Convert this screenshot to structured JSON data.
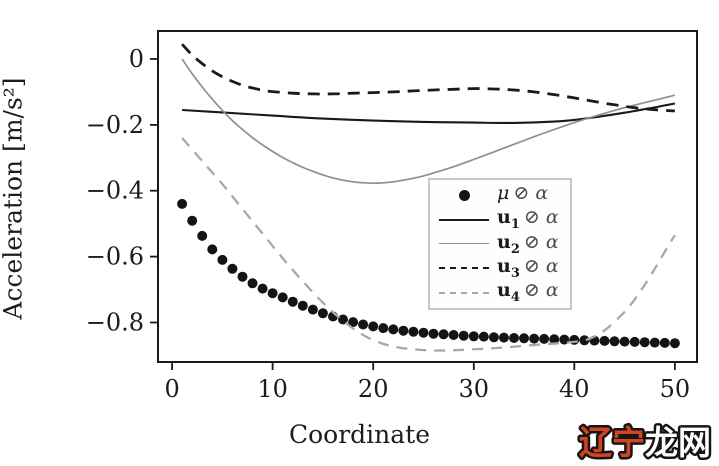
{
  "axes": {
    "x_label": "Coordinate",
    "y_label": "Acceleration [m/s²]"
  },
  "legend": {
    "entries": [
      {
        "var_base": "μ",
        "var_sub": "",
        "suffix": "⊘ α"
      },
      {
        "var_base": "u",
        "var_sub": "1",
        "suffix": "⊘ α"
      },
      {
        "var_base": "u",
        "var_sub": "2",
        "suffix": "⊘ α"
      },
      {
        "var_base": "u",
        "var_sub": "3",
        "suffix": "⊘ α"
      },
      {
        "var_base": "u",
        "var_sub": "4",
        "suffix": "⊘ α"
      }
    ]
  },
  "watermark": {
    "part1": "辽宁",
    "part2": "龙网",
    "part1_color": "#d2431f",
    "part2_color": "#ffffff",
    "outline_color": "#161616"
  },
  "chart_data": {
    "type": "line",
    "title": "",
    "xlabel": "Coordinate",
    "ylabel": "Acceleration [m/s²]",
    "xlim": [
      -1.4,
      52.2
    ],
    "ylim": [
      -0.92,
      0.085
    ],
    "grid": false,
    "legend_position": "inside lower-center-right",
    "xticks": {
      "values": [
        0,
        10,
        20,
        30,
        40,
        50
      ],
      "labels": [
        "0",
        "10",
        "20",
        "30",
        "40",
        "50"
      ]
    },
    "yticks": {
      "values": [
        0,
        -0.2,
        -0.4,
        -0.6,
        -0.8
      ],
      "labels": [
        "0",
        "−0.2",
        "−0.4",
        "−0.6",
        "−0.8"
      ]
    },
    "series": [
      {
        "name": "μ ⊘ α",
        "type": "scatter",
        "color": "#141414",
        "marker": "filled-circle",
        "marker_radius": 5,
        "x": [
          1,
          2,
          3,
          4,
          5,
          6,
          7,
          8,
          9,
          10,
          11,
          12,
          13,
          14,
          15,
          16,
          17,
          18,
          19,
          20,
          21,
          22,
          23,
          24,
          25,
          26,
          27,
          28,
          29,
          30,
          31,
          32,
          33,
          34,
          35,
          36,
          37,
          38,
          39,
          40,
          41,
          42,
          43,
          44,
          45,
          46,
          47,
          48,
          49,
          50
        ],
        "y": [
          -0.44,
          -0.491,
          -0.537,
          -0.578,
          -0.61,
          -0.637,
          -0.661,
          -0.681,
          -0.697,
          -0.711,
          -0.724,
          -0.737,
          -0.749,
          -0.761,
          -0.772,
          -0.782,
          -0.791,
          -0.799,
          -0.806,
          -0.812,
          -0.817,
          -0.821,
          -0.825,
          -0.828,
          -0.831,
          -0.834,
          -0.836,
          -0.838,
          -0.84,
          -0.842,
          -0.843,
          -0.845,
          -0.846,
          -0.847,
          -0.848,
          -0.849,
          -0.85,
          -0.851,
          -0.852,
          -0.853,
          -0.854,
          -0.855,
          -0.856,
          -0.857,
          -0.858,
          -0.859,
          -0.86,
          -0.861,
          -0.862,
          -0.863
        ]
      },
      {
        "name": "u₁ ⊘ α",
        "type": "line",
        "style": "solid",
        "color": "#1a1a1a",
        "width": 2.1,
        "dash": "",
        "x": [
          1,
          5,
          10,
          15,
          20,
          25,
          30,
          34,
          38,
          40,
          42,
          44,
          45,
          46,
          47,
          48,
          49,
          50
        ],
        "y": [
          -0.155,
          -0.162,
          -0.172,
          -0.181,
          -0.187,
          -0.191,
          -0.193,
          -0.194,
          -0.19,
          -0.185,
          -0.177,
          -0.168,
          -0.163,
          -0.158,
          -0.152,
          -0.147,
          -0.141,
          -0.135
        ]
      },
      {
        "name": "u₂ ⊘ α",
        "type": "line",
        "style": "solid",
        "color": "#8f8f8f",
        "width": 1.7,
        "dash": "",
        "x": [
          1,
          2,
          3,
          4,
          5,
          6,
          7,
          8,
          9,
          10,
          11,
          12,
          13,
          14,
          15,
          16,
          17,
          18,
          19,
          20,
          21,
          22,
          23,
          24,
          25,
          26,
          28,
          30,
          32,
          34,
          36,
          38,
          40,
          42,
          44,
          46,
          48,
          50
        ],
        "y": [
          0.0,
          -0.045,
          -0.085,
          -0.122,
          -0.156,
          -0.187,
          -0.214,
          -0.239,
          -0.261,
          -0.281,
          -0.299,
          -0.315,
          -0.329,
          -0.341,
          -0.352,
          -0.361,
          -0.368,
          -0.373,
          -0.376,
          -0.377,
          -0.376,
          -0.373,
          -0.368,
          -0.362,
          -0.355,
          -0.346,
          -0.327,
          -0.305,
          -0.282,
          -0.259,
          -0.236,
          -0.214,
          -0.193,
          -0.174,
          -0.156,
          -0.14,
          -0.125,
          -0.11
        ]
      },
      {
        "name": "u₃ ⊘ α",
        "type": "line",
        "style": "dashed",
        "color": "#1a1a1a",
        "width": 2.8,
        "dash": "12,8",
        "x": [
          1,
          2,
          3,
          4,
          5,
          6,
          7,
          8,
          9,
          10,
          12,
          14,
          16,
          18,
          20,
          22,
          24,
          26,
          28,
          30,
          32,
          34,
          36,
          38,
          40,
          42,
          44,
          46,
          48,
          50
        ],
        "y": [
          0.045,
          0.012,
          -0.014,
          -0.036,
          -0.054,
          -0.068,
          -0.08,
          -0.088,
          -0.095,
          -0.099,
          -0.104,
          -0.106,
          -0.106,
          -0.104,
          -0.102,
          -0.1,
          -0.097,
          -0.094,
          -0.092,
          -0.09,
          -0.091,
          -0.094,
          -0.1,
          -0.108,
          -0.118,
          -0.129,
          -0.139,
          -0.148,
          -0.154,
          -0.158
        ]
      },
      {
        "name": "u₄ ⊘ α",
        "type": "line",
        "style": "dashed",
        "color": "#a8a8a8",
        "width": 2.3,
        "dash": "11,8",
        "x": [
          1,
          3,
          5,
          7,
          9,
          11,
          13,
          15,
          17,
          19,
          21,
          23,
          25,
          27,
          29,
          31,
          33,
          35,
          37,
          39,
          41,
          42,
          43,
          44,
          45,
          46,
          47,
          48,
          49,
          50
        ],
        "y": [
          -0.24,
          -0.31,
          -0.38,
          -0.455,
          -0.53,
          -0.605,
          -0.675,
          -0.74,
          -0.795,
          -0.838,
          -0.865,
          -0.878,
          -0.884,
          -0.885,
          -0.883,
          -0.88,
          -0.876,
          -0.871,
          -0.866,
          -0.862,
          -0.854,
          -0.843,
          -0.824,
          -0.798,
          -0.768,
          -0.73,
          -0.686,
          -0.637,
          -0.585,
          -0.535
        ]
      }
    ]
  }
}
